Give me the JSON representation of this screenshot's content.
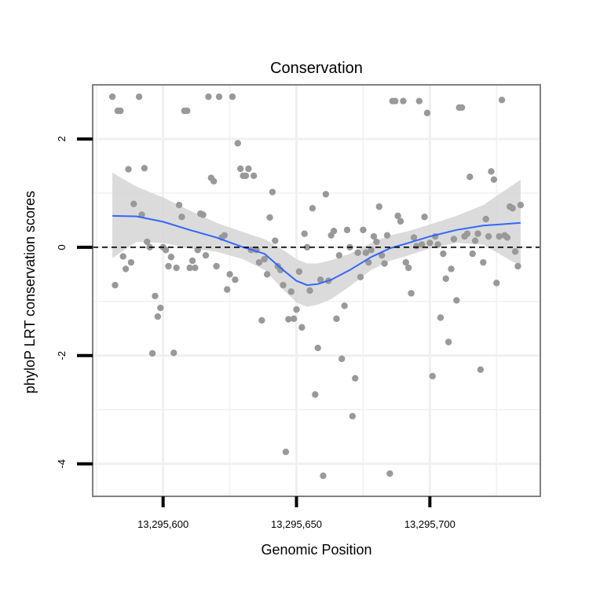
{
  "chart_data": {
    "type": "scatter",
    "title": "Conservation",
    "xlabel": "Genomic Position",
    "ylabel": "phyloP LRT conservation scores",
    "xlim": [
      13295573.6,
      13295741.4
    ],
    "ylim": [
      -4.6,
      3.0
    ],
    "x_ticks": [
      {
        "value": 13295600,
        "label": "13,295,600"
      },
      {
        "value": 13295650,
        "label": "13,295,650"
      },
      {
        "value": 13295700,
        "label": "13,295,700"
      }
    ],
    "y_ticks": [
      {
        "value": -4,
        "label": "-4"
      },
      {
        "value": -2,
        "label": "-2"
      },
      {
        "value": 0,
        "label": "0"
      },
      {
        "value": 2,
        "label": "2"
      }
    ],
    "grid": true,
    "reference_line": {
      "y": 0,
      "style": "dashed"
    },
    "colors": {
      "points": "#999999",
      "smooth": "#3366ff",
      "ribbon": "#d5d5d5",
      "panel_border": "#808080",
      "grid": "#f0f0f0"
    },
    "points": [
      [
        13295581,
        2.78
      ],
      [
        13295583,
        2.52
      ],
      [
        13295584,
        2.52
      ],
      [
        13295591,
        2.78
      ],
      [
        13295582,
        -0.7
      ],
      [
        13295585,
        -0.17
      ],
      [
        13295586,
        -0.4
      ],
      [
        13295587,
        1.44
      ],
      [
        13295588,
        -0.28
      ],
      [
        13295589,
        0.8
      ],
      [
        13295592,
        0.6
      ],
      [
        13295593,
        1.46
      ],
      [
        13295594,
        0.1
      ],
      [
        13295595,
        0.0
      ],
      [
        13295596,
        -1.96
      ],
      [
        13295597,
        -0.9
      ],
      [
        13295598,
        -1.28
      ],
      [
        13295599,
        -1.12
      ],
      [
        13295600,
        0.0
      ],
      [
        13295601,
        -0.05
      ],
      [
        13295602,
        -0.35
      ],
      [
        13295603,
        -0.18
      ],
      [
        13295604,
        -1.95
      ],
      [
        13295605,
        -0.38
      ],
      [
        13295606,
        0.78
      ],
      [
        13295607,
        0.56
      ],
      [
        13295608,
        2.52
      ],
      [
        13295609,
        2.52
      ],
      [
        13295610,
        -0.38
      ],
      [
        13295611,
        -0.25
      ],
      [
        13295612,
        -0.38
      ],
      [
        13295613,
        -0.05
      ],
      [
        13295614,
        0.62
      ],
      [
        13295615,
        0.6
      ],
      [
        13295616,
        -0.15
      ],
      [
        13295617,
        2.78
      ],
      [
        13295618,
        1.28
      ],
      [
        13295619,
        1.22
      ],
      [
        13295620,
        -0.35
      ],
      [
        13295621,
        2.78
      ],
      [
        13295622,
        0.18
      ],
      [
        13295623,
        0.22
      ],
      [
        13295624,
        -0.78
      ],
      [
        13295625,
        -0.5
      ],
      [
        13295626,
        2.78
      ],
      [
        13295627,
        -0.6
      ],
      [
        13295628,
        1.92
      ],
      [
        13295629,
        1.45
      ],
      [
        13295630,
        1.32
      ],
      [
        13295631,
        1.32
      ],
      [
        13295632,
        1.45
      ],
      [
        13295633,
        -0.05
      ],
      [
        13295634,
        1.32
      ],
      [
        13295635,
        -0.05
      ],
      [
        13295636,
        -0.28
      ],
      [
        13295637,
        -1.35
      ],
      [
        13295638,
        -0.22
      ],
      [
        13295639,
        -0.5
      ],
      [
        13295640,
        0.55
      ],
      [
        13295641,
        1.02
      ],
      [
        13295642,
        0.12
      ],
      [
        13295643,
        -0.35
      ],
      [
        13295644,
        -0.42
      ],
      [
        13295645,
        -0.7
      ],
      [
        13295646,
        -3.78
      ],
      [
        13295647,
        -1.33
      ],
      [
        13295648,
        -0.82
      ],
      [
        13295649,
        -1.32
      ],
      [
        13295650,
        -1.15
      ],
      [
        13295651,
        -0.45
      ],
      [
        13295652,
        -1.48
      ],
      [
        13295653,
        0.25
      ],
      [
        13295654,
        0.0
      ],
      [
        13295655,
        -0.8
      ],
      [
        13295656,
        0.72
      ],
      [
        13295657,
        -2.72
      ],
      [
        13295658,
        -1.86
      ],
      [
        13295659,
        -0.6
      ],
      [
        13295660,
        -4.22
      ],
      [
        13295661,
        0.98
      ],
      [
        13295662,
        -0.62
      ],
      [
        13295663,
        0.22
      ],
      [
        13295664,
        0.3
      ],
      [
        13295665,
        -1.32
      ],
      [
        13295666,
        -0.15
      ],
      [
        13295667,
        -2.06
      ],
      [
        13295668,
        -1.08
      ],
      [
        13295669,
        0.32
      ],
      [
        13295670,
        0.0
      ],
      [
        13295671,
        -3.12
      ],
      [
        13295672,
        -2.42
      ],
      [
        13295673,
        -0.1
      ],
      [
        13295674,
        -0.55
      ],
      [
        13295675,
        0.32
      ],
      [
        13295676,
        -0.1
      ],
      [
        13295677,
        -0.28
      ],
      [
        13295678,
        -0.05
      ],
      [
        13295679,
        0.2
      ],
      [
        13295680,
        0.1
      ],
      [
        13295681,
        0.75
      ],
      [
        13295682,
        -0.15
      ],
      [
        13295683,
        -0.3
      ],
      [
        13295684,
        0.22
      ],
      [
        13295685,
        -4.18
      ],
      [
        13295686,
        2.7
      ],
      [
        13295687,
        2.7
      ],
      [
        13295688,
        0.58
      ],
      [
        13295689,
        0.48
      ],
      [
        13295690,
        2.7
      ],
      [
        13295691,
        -0.28
      ],
      [
        13295692,
        -0.38
      ],
      [
        13295693,
        -0.85
      ],
      [
        13295694,
        0.18
      ],
      [
        13295695,
        0.02
      ],
      [
        13295696,
        2.7
      ],
      [
        13295697,
        0.05
      ],
      [
        13295698,
        0.56
      ],
      [
        13295699,
        2.48
      ],
      [
        13295700,
        0.08
      ],
      [
        13295701,
        -2.38
      ],
      [
        13295702,
        0.2
      ],
      [
        13295703,
        0.05
      ],
      [
        13295704,
        -1.3
      ],
      [
        13295705,
        -0.12
      ],
      [
        13295706,
        -0.58
      ],
      [
        13295707,
        -1.75
      ],
      [
        13295708,
        -0.4
      ],
      [
        13295709,
        0.15
      ],
      [
        13295710,
        -0.98
      ],
      [
        13295711,
        2.58
      ],
      [
        13295712,
        2.58
      ],
      [
        13295713,
        0.2
      ],
      [
        13295714,
        0.25
      ],
      [
        13295715,
        1.3
      ],
      [
        13295716,
        -0.12
      ],
      [
        13295717,
        0.12
      ],
      [
        13295718,
        0.25
      ],
      [
        13295719,
        -2.26
      ],
      [
        13295720,
        -0.28
      ],
      [
        13295721,
        0.52
      ],
      [
        13295722,
        0.2
      ],
      [
        13295723,
        1.4
      ],
      [
        13295724,
        1.25
      ],
      [
        13295725,
        -0.66
      ],
      [
        13295726,
        0.2
      ],
      [
        13295727,
        2.72
      ],
      [
        13295728,
        0.22
      ],
      [
        13295729,
        0.18
      ],
      [
        13295730,
        0.75
      ],
      [
        13295731,
        0.72
      ],
      [
        13295732,
        -0.08
      ],
      [
        13295733,
        -0.35
      ],
      [
        13295734,
        0.78
      ]
    ],
    "smooth": [
      [
        13295581,
        0.58
      ],
      [
        13295590,
        0.57
      ],
      [
        13295600,
        0.47
      ],
      [
        13295610,
        0.32
      ],
      [
        13295620,
        0.18
      ],
      [
        13295630,
        0.0
      ],
      [
        13295638,
        -0.12
      ],
      [
        13295645,
        -0.42
      ],
      [
        13295650,
        -0.62
      ],
      [
        13295654,
        -0.7
      ],
      [
        13295658,
        -0.68
      ],
      [
        13295663,
        -0.6
      ],
      [
        13295670,
        -0.42
      ],
      [
        13295678,
        -0.18
      ],
      [
        13295685,
        -0.02
      ],
      [
        13295692,
        0.08
      ],
      [
        13295700,
        0.2
      ],
      [
        13295710,
        0.32
      ],
      [
        13295720,
        0.4
      ],
      [
        13295734,
        0.45
      ]
    ],
    "ribbon_upper": [
      [
        13295581,
        1.38
      ],
      [
        13295590,
        1.12
      ],
      [
        13295600,
        0.92
      ],
      [
        13295610,
        0.68
      ],
      [
        13295620,
        0.45
      ],
      [
        13295630,
        0.28
      ],
      [
        13295638,
        0.15
      ],
      [
        13295645,
        -0.05
      ],
      [
        13295650,
        -0.22
      ],
      [
        13295654,
        -0.3
      ],
      [
        13295658,
        -0.3
      ],
      [
        13295663,
        -0.24
      ],
      [
        13295670,
        -0.12
      ],
      [
        13295678,
        0.08
      ],
      [
        13295685,
        0.22
      ],
      [
        13295692,
        0.3
      ],
      [
        13295700,
        0.42
      ],
      [
        13295710,
        0.58
      ],
      [
        13295720,
        0.78
      ],
      [
        13295734,
        1.25
      ]
    ],
    "ribbon_lower": [
      [
        13295581,
        -0.2
      ],
      [
        13295590,
        0.1
      ],
      [
        13295600,
        0.08
      ],
      [
        13295610,
        -0.02
      ],
      [
        13295620,
        -0.08
      ],
      [
        13295630,
        -0.22
      ],
      [
        13295638,
        -0.42
      ],
      [
        13295645,
        -0.78
      ],
      [
        13295650,
        -1.02
      ],
      [
        13295654,
        -1.1
      ],
      [
        13295658,
        -1.06
      ],
      [
        13295663,
        -0.96
      ],
      [
        13295670,
        -0.72
      ],
      [
        13295678,
        -0.42
      ],
      [
        13295685,
        -0.25
      ],
      [
        13295692,
        -0.15
      ],
      [
        13295700,
        -0.02
      ],
      [
        13295710,
        0.08
      ],
      [
        13295720,
        0.05
      ],
      [
        13295734,
        -0.35
      ]
    ]
  }
}
